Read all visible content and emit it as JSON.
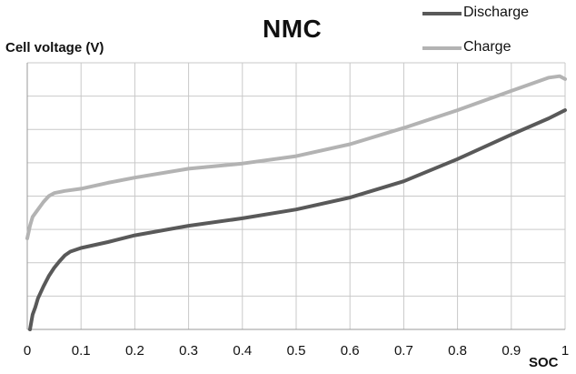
{
  "chart_data": {
    "type": "line",
    "title": "NMC",
    "xlabel": "SOC",
    "ylabel": "Cell voltage (V)",
    "xlim": [
      0,
      1
    ],
    "xticks": [
      "0",
      "0.1",
      "0.2",
      "0.3",
      "0.4",
      "0.5",
      "0.6",
      "0.7",
      "0.8",
      "0.9",
      "1"
    ],
    "y_tick_labels_shown": false,
    "grid": true,
    "legend_position": "top-right",
    "series": [
      {
        "name": "Discharge",
        "color": "#595959",
        "points": [
          [
            0.005,
            0.0
          ],
          [
            0.01,
            0.2
          ],
          [
            0.015,
            0.3
          ],
          [
            0.02,
            0.42
          ],
          [
            0.03,
            0.58
          ],
          [
            0.04,
            0.72
          ],
          [
            0.05,
            0.83
          ],
          [
            0.06,
            0.92
          ],
          [
            0.07,
            1.0
          ],
          [
            0.08,
            1.05
          ],
          [
            0.1,
            1.1
          ],
          [
            0.15,
            1.18
          ],
          [
            0.2,
            1.27
          ],
          [
            0.3,
            1.4
          ],
          [
            0.4,
            1.5
          ],
          [
            0.5,
            1.62
          ],
          [
            0.6,
            1.78
          ],
          [
            0.7,
            2.0
          ],
          [
            0.8,
            2.3
          ],
          [
            0.9,
            2.63
          ],
          [
            0.97,
            2.85
          ],
          [
            1.0,
            2.96
          ]
        ]
      },
      {
        "name": "Charge",
        "color": "#b3b3b3",
        "points": [
          [
            0.0,
            1.23
          ],
          [
            0.005,
            1.4
          ],
          [
            0.01,
            1.52
          ],
          [
            0.02,
            1.62
          ],
          [
            0.03,
            1.72
          ],
          [
            0.04,
            1.8
          ],
          [
            0.05,
            1.84
          ],
          [
            0.07,
            1.87
          ],
          [
            0.1,
            1.9
          ],
          [
            0.15,
            1.98
          ],
          [
            0.2,
            2.05
          ],
          [
            0.3,
            2.17
          ],
          [
            0.4,
            2.24
          ],
          [
            0.5,
            2.34
          ],
          [
            0.6,
            2.5
          ],
          [
            0.7,
            2.72
          ],
          [
            0.8,
            2.96
          ],
          [
            0.9,
            3.22
          ],
          [
            0.97,
            3.4
          ],
          [
            0.99,
            3.42
          ],
          [
            1.0,
            3.38
          ]
        ]
      }
    ]
  }
}
